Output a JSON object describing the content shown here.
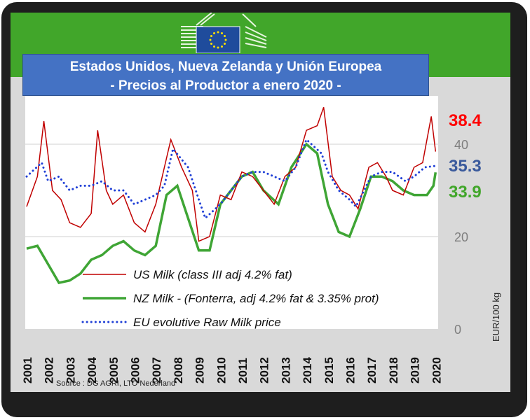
{
  "title_line1": "Estados Unidos, Nueva Zelanda y Unión Europea",
  "title_line2": "- Precios al Productor a enero 2020 -",
  "source": "Source : DG AGRI, LTO Nederland",
  "colors": {
    "header_green": "#41a62a",
    "title_blue": "#4472c4",
    "us": "#c00000",
    "nz": "#3fa535",
    "eu": "#1f3fd6"
  },
  "chart_data": {
    "type": "line",
    "title": "Estados Unidos, Nueva Zelanda y Unión Europea - Precios al Productor a enero 2020 -",
    "ylabel": "EUR/100 kg",
    "ylim": [
      0,
      48
    ],
    "yticks": [
      0,
      20,
      40
    ],
    "xticks": [
      "2001",
      "2002",
      "2003",
      "2004",
      "2005",
      "2006",
      "2007",
      "2008",
      "2009",
      "2010",
      "2011",
      "2012",
      "2013",
      "2014",
      "2015",
      "2016",
      "2017",
      "2018",
      "2019",
      "2020"
    ],
    "grid": true,
    "legend_placement": "bottom-left",
    "series": [
      {
        "name": "US Milk (class III adj 4.2% fat)",
        "color": "#c00000",
        "style": "solid",
        "end_label": "38.4",
        "x": [
          2001,
          2001.5,
          2001.8,
          2002.2,
          2002.6,
          2003,
          2003.5,
          2004,
          2004.3,
          2004.7,
          2005,
          2005.5,
          2006,
          2006.5,
          2007,
          2007.4,
          2007.7,
          2008.2,
          2008.7,
          2009,
          2009.5,
          2010,
          2010.5,
          2011,
          2011.5,
          2012,
          2012.5,
          2013,
          2013.5,
          2014,
          2014.5,
          2014.8,
          2015.2,
          2015.6,
          2016,
          2016.4,
          2016.9,
          2017.3,
          2017.7,
          2018,
          2018.5,
          2019,
          2019.4,
          2019.8,
          2020
        ],
        "y": [
          26.5,
          33,
          45,
          30,
          28,
          23,
          22,
          25,
          43,
          30,
          27,
          29,
          23,
          21,
          27,
          35,
          41,
          35,
          30,
          19,
          20,
          29,
          28,
          34,
          33,
          30,
          27,
          33,
          35,
          43,
          44,
          48,
          33,
          30,
          29,
          26,
          35,
          36,
          33,
          30,
          29,
          35,
          36,
          46,
          38.4
        ]
      },
      {
        "name": "NZ Milk - (Fonterra, adj 4.2% fat & 3.35% prot)",
        "color": "#3fa535",
        "style": "solid",
        "end_label": "33.9",
        "x": [
          2001,
          2001.5,
          2002,
          2002.5,
          2003,
          2003.5,
          2004,
          2004.5,
          2005,
          2005.5,
          2006,
          2006.5,
          2007,
          2007.5,
          2008,
          2008.5,
          2009,
          2009.5,
          2010,
          2010.5,
          2011,
          2011.5,
          2012,
          2012.7,
          2013.3,
          2014,
          2014.5,
          2015,
          2015.5,
          2016,
          2016.5,
          2017,
          2017.5,
          2018,
          2018.5,
          2019,
          2019.6,
          2019.9,
          2020
        ],
        "y": [
          17.4,
          18,
          14,
          10,
          10.5,
          12,
          15,
          16,
          18,
          19,
          17,
          16,
          18,
          29,
          31,
          24,
          17,
          17,
          27,
          30,
          33,
          34,
          30,
          27,
          35,
          40,
          38,
          27,
          21,
          20,
          26,
          33,
          33,
          32,
          30,
          29,
          29,
          31,
          33.9
        ]
      },
      {
        "name": "EU evolutive Raw Milk price",
        "color": "#1f3fd6",
        "style": "dotted",
        "end_label": "35.3",
        "x": [
          2001,
          2001.7,
          2002,
          2002.5,
          2003,
          2003.5,
          2004,
          2004.5,
          2005,
          2005.5,
          2006,
          2006.5,
          2007,
          2007.4,
          2007.8,
          2008.5,
          2009,
          2009.3,
          2010,
          2010.5,
          2011,
          2011.5,
          2012,
          2012.5,
          2013,
          2013.5,
          2014,
          2014.7,
          2015,
          2015.5,
          2016,
          2016.3,
          2017,
          2017.5,
          2018,
          2018.6,
          2019,
          2019.5,
          2020
        ],
        "y": [
          33,
          36,
          32,
          33,
          30,
          31,
          31,
          32,
          30,
          30,
          27,
          28,
          29,
          31,
          39,
          35,
          28,
          24,
          27,
          30,
          33,
          34,
          34,
          33,
          32,
          35,
          41,
          38,
          34,
          30,
          28,
          26.5,
          33,
          34,
          34,
          32,
          33,
          35,
          35.3
        ]
      }
    ]
  }
}
